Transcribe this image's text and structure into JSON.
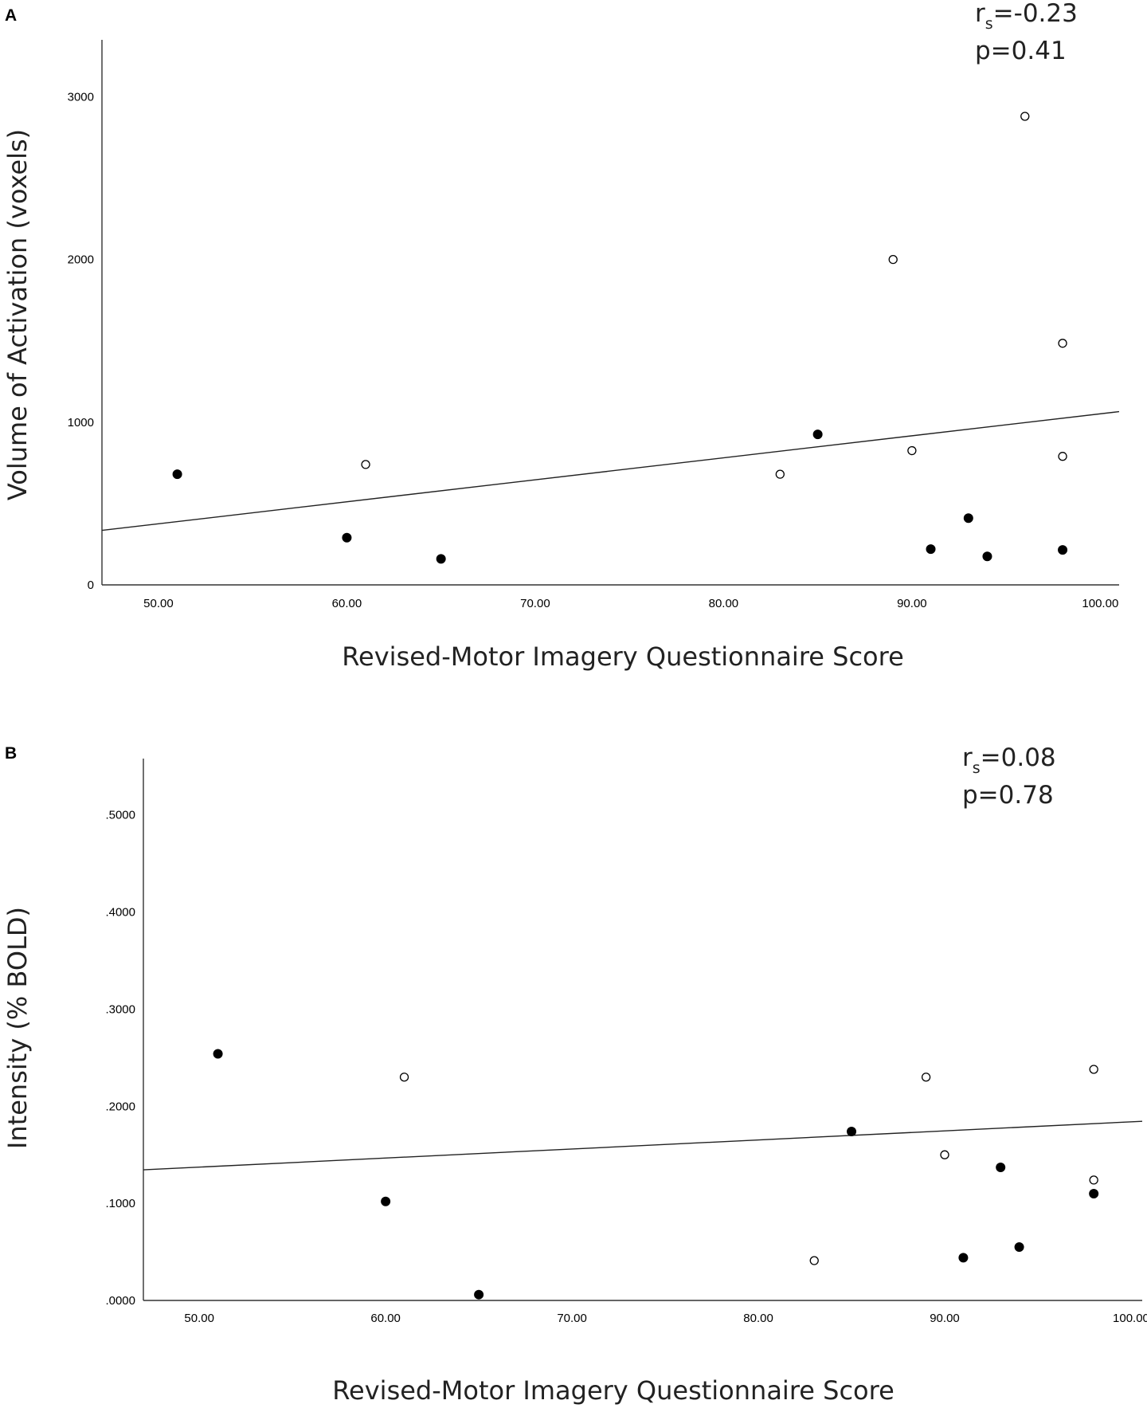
{
  "chart_data": [
    {
      "panel": "A",
      "type": "scatter",
      "xlabel": "Revised-Motor Imagery Questionnaire Score",
      "ylabel": "Volume of Activation (voxels)",
      "stat_r_prefix": "r",
      "stat_r_sub": "s",
      "stat_r_value": "=-0.23",
      "stat_p": "p=0.41",
      "xlim": [
        47,
        101
      ],
      "ylim": [
        0,
        3350
      ],
      "x_ticks": [
        50,
        60,
        70,
        80,
        90,
        100
      ],
      "x_tick_labels": [
        "50.00",
        "60.00",
        "70.00",
        "80.00",
        "90.00",
        "100.00"
      ],
      "y_ticks": [
        0,
        1000,
        2000,
        3000
      ],
      "y_tick_labels": [
        "0",
        "1000",
        "2000",
        "3000"
      ],
      "fit_line": {
        "x": [
          47,
          101
        ],
        "y": [
          335,
          1065
        ]
      },
      "series": [
        {
          "marker": "filled",
          "points": [
            [
              51,
              680
            ],
            [
              60,
              290
            ],
            [
              65,
              160
            ],
            [
              85,
              925
            ],
            [
              91,
              220
            ],
            [
              93,
              410
            ],
            [
              94,
              175
            ],
            [
              98,
              215
            ]
          ]
        },
        {
          "marker": "open",
          "points": [
            [
              61,
              740
            ],
            [
              83,
              680
            ],
            [
              89,
              2000
            ],
            [
              90,
              825
            ],
            [
              96,
              2880
            ],
            [
              98,
              1485
            ],
            [
              98,
              790
            ]
          ]
        }
      ]
    },
    {
      "panel": "B",
      "type": "scatter",
      "xlabel": "Revised-Motor Imagery Questionnaire Score",
      "ylabel": "Intensity (% BOLD)",
      "stat_r_prefix": "r",
      "stat_r_sub": "s",
      "stat_r_value": "=0.08",
      "stat_p": "p=0.78",
      "xlim": [
        47,
        100.6
      ],
      "ylim": [
        0,
        0.558
      ],
      "x_ticks": [
        50,
        60,
        70,
        80,
        90,
        100
      ],
      "x_tick_labels": [
        "50.00",
        "60.00",
        "70.00",
        "80.00",
        "90.00",
        "100.00"
      ],
      "y_ticks": [
        0,
        0.1,
        0.2,
        0.3,
        0.4,
        0.5
      ],
      "y_tick_labels": [
        ".0000",
        ".1000",
        ".2000",
        ".3000",
        ".4000",
        ".5000"
      ],
      "fit_line": {
        "x": [
          47,
          100.6
        ],
        "y": [
          0.1345,
          0.1845
        ]
      },
      "series": [
        {
          "marker": "filled",
          "points": [
            [
              51,
              0.254
            ],
            [
              60,
              0.102
            ],
            [
              65,
              0.006
            ],
            [
              85,
              0.174
            ],
            [
              91,
              0.044
            ],
            [
              93,
              0.137
            ],
            [
              94,
              0.055
            ],
            [
              98,
              0.11
            ]
          ]
        },
        {
          "marker": "open",
          "points": [
            [
              61,
              0.23
            ],
            [
              83,
              0.041
            ],
            [
              89,
              0.23
            ],
            [
              90,
              0.15
            ],
            [
              98,
              0.238
            ],
            [
              98,
              0.124
            ]
          ]
        }
      ]
    }
  ]
}
